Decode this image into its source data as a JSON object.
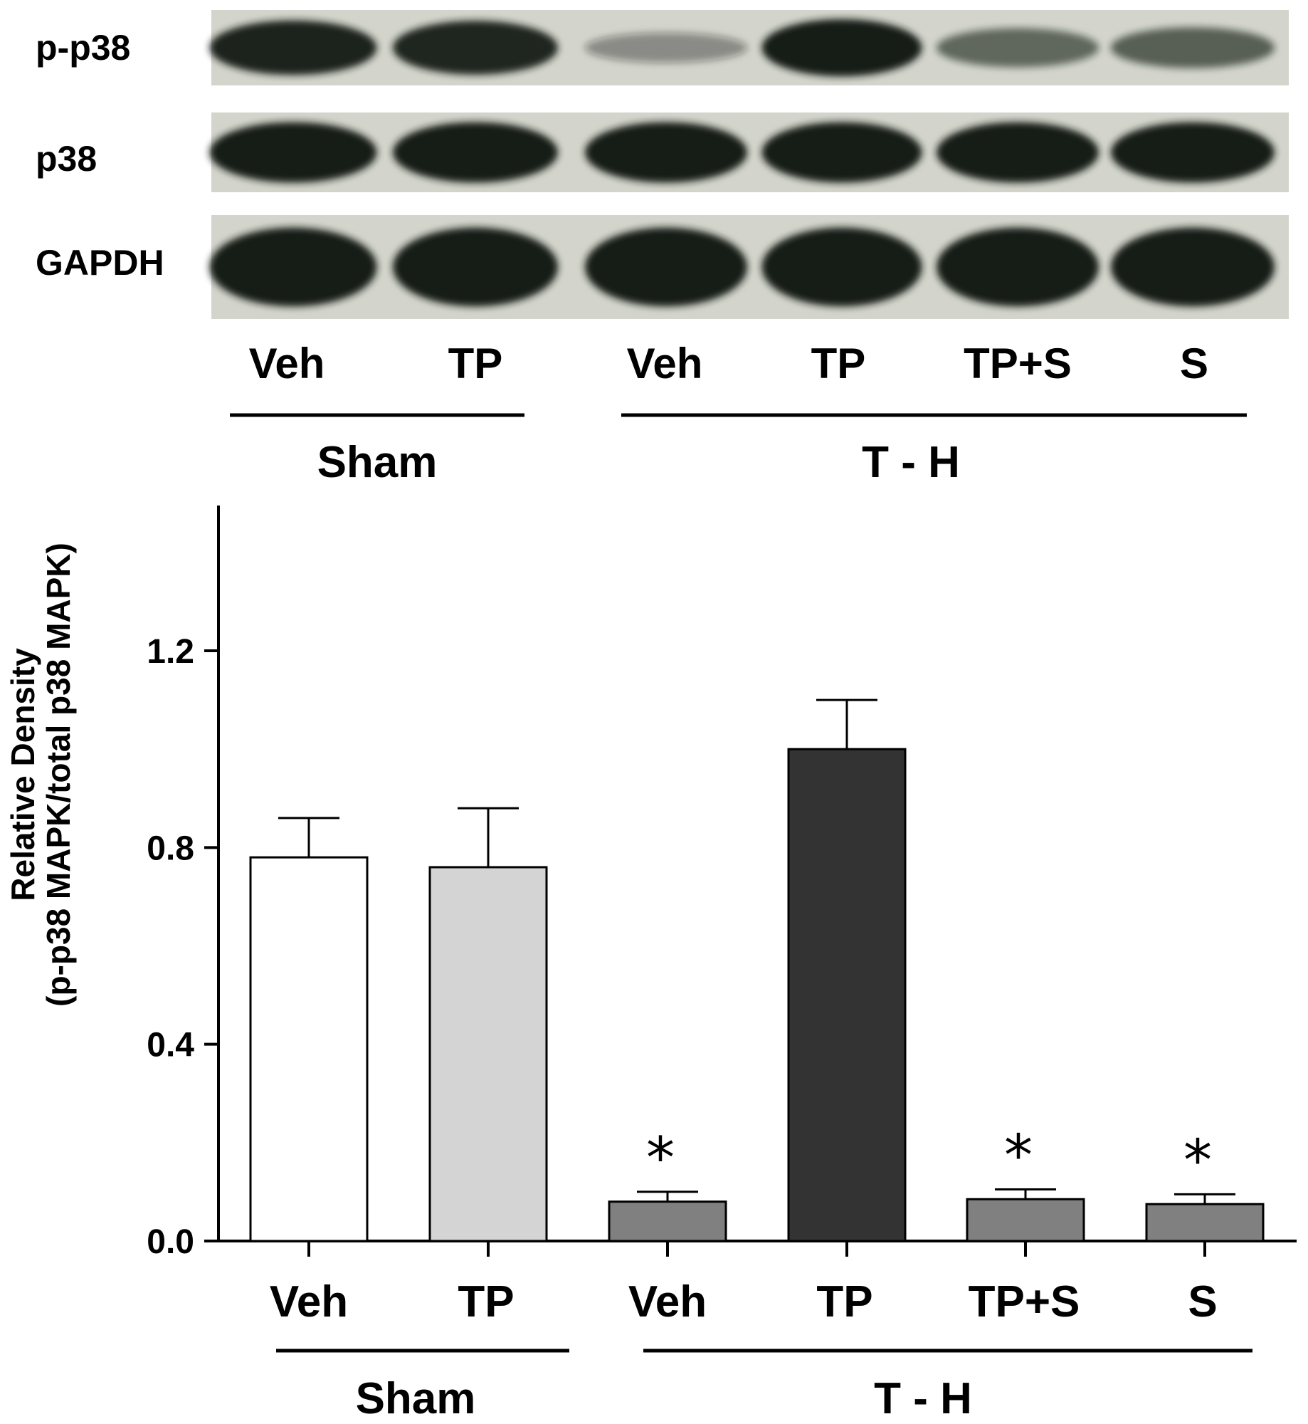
{
  "blot": {
    "rows": [
      {
        "label": "p-p38",
        "intensities": [
          0.92,
          0.9,
          0.18,
          1.0,
          0.45,
          0.5
        ]
      },
      {
        "label": "p38",
        "intensities": [
          1.0,
          1.0,
          1.0,
          1.0,
          1.0,
          1.0
        ]
      },
      {
        "label": "GAPDH",
        "intensities": [
          1.0,
          1.0,
          1.0,
          1.0,
          1.0,
          1.0
        ]
      }
    ],
    "lane_labels": [
      "Veh",
      "TP",
      "Veh",
      "TP",
      "TP+S",
      "S"
    ],
    "group_labels": [
      "Sham",
      "T - H"
    ],
    "background": "#d3d5cc",
    "band_color": "#161a14"
  },
  "chart_data": {
    "type": "bar",
    "ylabel": "Relative Density",
    "ylabel_sub": "(p-p38 MAPK/total p38 MAPK)",
    "categories": [
      "Veh",
      "TP",
      "Veh",
      "TP",
      "TP+S",
      "S"
    ],
    "groups": [
      {
        "label": "Sham",
        "categories": [
          "Veh",
          "TP"
        ]
      },
      {
        "label": "T - H",
        "categories": [
          "Veh",
          "TP",
          "TP+S",
          "S"
        ]
      }
    ],
    "values": [
      0.78,
      0.76,
      0.08,
      1.0,
      0.085,
      0.075
    ],
    "errors": [
      0.08,
      0.12,
      0.02,
      0.1,
      0.02,
      0.02
    ],
    "significance": [
      "",
      "",
      "*",
      "",
      "*",
      "*"
    ],
    "bar_colors": [
      "#ffffff",
      "#d4d4d4",
      "#808080",
      "#333333",
      "#808080",
      "#808080"
    ],
    "ylim": [
      0,
      1.5
    ],
    "yticks": [
      0.0,
      0.4,
      0.8,
      1.2
    ],
    "ytick_labels": [
      "0.0",
      "0.4",
      "0.8",
      "1.2"
    ],
    "grid": false
  }
}
